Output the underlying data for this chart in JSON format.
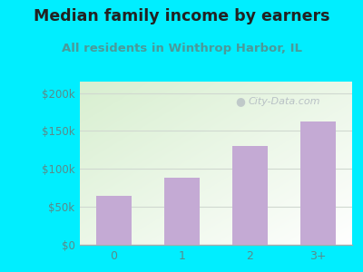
{
  "title": "Median family income by earners",
  "subtitle": "All residents in Winthrop Harbor, IL",
  "categories": [
    "0",
    "1",
    "2",
    "3+"
  ],
  "values": [
    65000,
    88000,
    130000,
    163000
  ],
  "bar_color": "#c4aad4",
  "title_fontsize": 12.5,
  "subtitle_fontsize": 9.5,
  "subtitle_color": "#4a9a9a",
  "title_color": "#222222",
  "background_outer": "#00eeff",
  "plot_bg_left": "#d8efd0",
  "plot_bg_right": "#f5fff5",
  "plot_bg_top": "#d8efd0",
  "plot_bg_bottom": "#ffffff",
  "yticks": [
    0,
    50000,
    100000,
    150000,
    200000
  ],
  "ytick_labels": [
    "$0",
    "$50k",
    "$100k",
    "$150k",
    "$200k"
  ],
  "ylim": [
    0,
    215000
  ],
  "watermark": "City-Data.com",
  "watermark_color": "#b0b8c0",
  "tick_color": "#5a8a8a",
  "axis_color": "#aaaaaa",
  "grid_color": "#d0d8d0"
}
